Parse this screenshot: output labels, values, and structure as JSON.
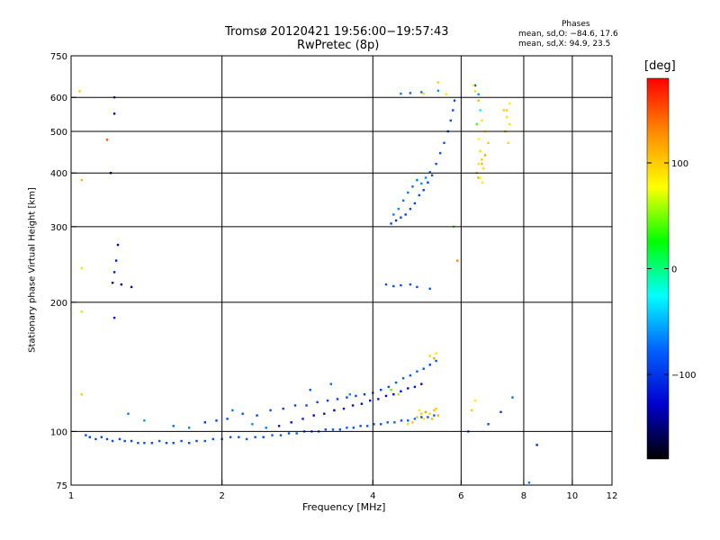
{
  "chart_data": {
    "type": "scatter",
    "title": "Tromsø 20120421 19:56:00−19:57:43",
    "subtitle": "RwPretec (8p)",
    "xlabel": "Frequency [MHz]",
    "ylabel": "Stationary phase Virtual Height [km]",
    "x_scale": "log",
    "y_scale": "log",
    "xlim": [
      1,
      12
    ],
    "ylim": [
      75,
      750
    ],
    "xticks": [
      1,
      2,
      4,
      6,
      8,
      10,
      12
    ],
    "xtick_labels": [
      "1",
      "2",
      "4",
      "6",
      "8",
      "10",
      "12"
    ],
    "yticks": [
      75,
      100,
      200,
      300,
      400,
      500,
      600,
      750
    ],
    "ytick_labels": [
      "75",
      "100",
      "200",
      "300",
      "400",
      "500",
      "600",
      "750"
    ],
    "grid_x": [
      2,
      4,
      6,
      8,
      10
    ],
    "grid_y": [
      100,
      200,
      300,
      400,
      500,
      600
    ],
    "grid": true,
    "colorbar": {
      "label": "[deg]",
      "ticks": [
        100,
        0,
        -100
      ],
      "tick_labels": [
        "100",
        "0",
        "−100"
      ],
      "range": [
        -180,
        180
      ],
      "colors_top_to_bottom": [
        "#ff0000",
        "#ff8c00",
        "#ffff00",
        "#00ff00",
        "#00ffff",
        "#0060ff",
        "#0000cc",
        "#000000"
      ]
    },
    "stats": {
      "heading": "Phases",
      "line1": "mean, sd,O: −84.6, 17.6",
      "line2": "mean, sd,X:  94.9, 23.5"
    },
    "series": [
      {
        "points": [
          [
            1.07,
            98
          ],
          [
            1.09,
            97
          ],
          [
            1.12,
            96
          ],
          [
            1.15,
            97
          ],
          [
            1.18,
            96
          ],
          [
            1.21,
            95
          ],
          [
            1.25,
            96
          ],
          [
            1.28,
            95
          ],
          [
            1.32,
            95
          ],
          [
            1.36,
            94
          ],
          [
            1.4,
            94
          ],
          [
            1.45,
            94
          ],
          [
            1.5,
            95
          ],
          [
            1.55,
            94
          ],
          [
            1.6,
            94
          ],
          [
            1.66,
            95
          ],
          [
            1.72,
            94
          ],
          [
            1.78,
            95
          ],
          [
            1.85,
            95
          ],
          [
            1.92,
            96
          ],
          [
            2.0,
            96
          ],
          [
            2.08,
            97
          ],
          [
            2.16,
            97
          ],
          [
            2.24,
            96
          ],
          [
            2.33,
            97
          ],
          [
            2.42,
            97
          ],
          [
            2.52,
            98
          ],
          [
            2.62,
            98
          ],
          [
            2.72,
            99
          ],
          [
            2.82,
            99
          ],
          [
            2.92,
            100
          ],
          [
            3.02,
            100
          ],
          [
            3.12,
            100
          ],
          [
            3.22,
            101
          ],
          [
            3.33,
            101
          ],
          [
            3.44,
            101
          ],
          [
            3.55,
            102
          ],
          [
            3.66,
            102
          ],
          [
            3.78,
            103
          ],
          [
            3.9,
            103
          ],
          [
            4.02,
            104
          ],
          [
            4.15,
            104
          ],
          [
            4.28,
            105
          ],
          [
            4.42,
            105
          ],
          [
            4.56,
            106
          ],
          [
            4.7,
            106
          ],
          [
            4.85,
            107
          ],
          [
            5.0,
            108
          ],
          [
            5.15,
            108
          ],
          [
            5.3,
            109
          ],
          [
            1.85,
            105
          ],
          [
            1.95,
            106
          ],
          [
            2.05,
            107
          ],
          [
            2.2,
            110
          ],
          [
            2.35,
            109
          ],
          [
            2.5,
            112
          ],
          [
            2.65,
            113
          ],
          [
            2.8,
            115
          ],
          [
            2.95,
            115
          ],
          [
            3.1,
            117
          ],
          [
            3.25,
            118
          ],
          [
            3.4,
            119
          ],
          [
            3.55,
            120
          ],
          [
            3.7,
            121
          ],
          [
            3.85,
            122
          ],
          [
            4.0,
            123
          ],
          [
            4.15,
            125
          ],
          [
            4.3,
            127
          ],
          [
            4.45,
            130
          ],
          [
            4.6,
            133
          ],
          [
            4.75,
            135
          ],
          [
            4.9,
            138
          ],
          [
            5.05,
            140
          ],
          [
            5.2,
            143
          ],
          [
            5.35,
            146
          ],
          [
            2.6,
            103
          ],
          [
            2.75,
            105
          ],
          [
            2.9,
            107
          ],
          [
            3.05,
            109
          ],
          [
            3.2,
            110
          ],
          [
            3.35,
            112
          ],
          [
            3.5,
            113
          ],
          [
            3.65,
            115
          ],
          [
            3.8,
            116
          ],
          [
            3.95,
            118
          ],
          [
            4.1,
            119
          ],
          [
            4.25,
            121
          ],
          [
            4.4,
            122
          ],
          [
            4.55,
            124
          ],
          [
            4.7,
            126
          ],
          [
            4.85,
            127
          ],
          [
            5.0,
            129
          ],
          [
            1.3,
            110
          ],
          [
            1.4,
            106
          ],
          [
            1.6,
            103
          ],
          [
            1.72,
            102
          ],
          [
            2.1,
            112
          ],
          [
            2.3,
            104
          ],
          [
            2.45,
            102
          ],
          [
            3.0,
            125
          ],
          [
            3.3,
            129
          ],
          [
            3.6,
            122
          ],
          [
            4.25,
            220
          ],
          [
            4.4,
            218
          ],
          [
            4.55,
            219
          ],
          [
            4.75,
            220
          ],
          [
            4.9,
            217
          ],
          [
            5.2,
            215
          ],
          [
            1.22,
            600
          ],
          [
            1.22,
            550
          ],
          [
            1.2,
            400
          ],
          [
            1.18,
            478
          ],
          [
            1.24,
            272
          ],
          [
            1.23,
            250
          ],
          [
            1.22,
            235
          ],
          [
            1.21,
            222
          ],
          [
            1.26,
            220
          ],
          [
            1.32,
            217
          ],
          [
            1.22,
            184
          ],
          [
            4.35,
            305
          ],
          [
            4.45,
            310
          ],
          [
            4.55,
            315
          ],
          [
            4.65,
            320
          ],
          [
            4.75,
            330
          ],
          [
            4.85,
            340
          ],
          [
            4.95,
            355
          ],
          [
            5.05,
            365
          ],
          [
            5.15,
            380
          ],
          [
            5.25,
            395
          ],
          [
            5.35,
            420
          ],
          [
            5.45,
            445
          ],
          [
            5.55,
            470
          ],
          [
            5.65,
            500
          ],
          [
            5.72,
            530
          ],
          [
            5.78,
            560
          ],
          [
            5.82,
            590
          ],
          [
            4.4,
            320
          ],
          [
            4.5,
            330
          ],
          [
            4.6,
            345
          ],
          [
            4.7,
            360
          ],
          [
            4.8,
            372
          ],
          [
            4.9,
            385
          ],
          [
            5.0,
            378
          ],
          [
            5.1,
            390
          ],
          [
            5.2,
            402
          ],
          [
            4.55,
            612
          ],
          [
            4.75,
            614
          ],
          [
            5.0,
            617
          ],
          [
            5.4,
            622
          ],
          [
            6.4,
            640
          ],
          [
            6.5,
            610
          ],
          [
            6.55,
            560
          ],
          [
            6.45,
            520
          ],
          [
            6.5,
            480
          ],
          [
            6.55,
            450
          ],
          [
            6.6,
            420
          ],
          [
            6.5,
            390
          ],
          [
            7.4,
            560
          ],
          [
            7.5,
            520
          ],
          [
            8.2,
            76
          ],
          [
            8.5,
            93
          ],
          [
            6.2,
            100
          ],
          [
            6.8,
            104
          ],
          [
            7.2,
            111
          ],
          [
            7.6,
            120
          ]
        ],
        "phase": [
          -90,
          -95,
          -88,
          -92,
          -90,
          -85,
          -93,
          -88,
          -91,
          -87,
          -84,
          -90,
          -86,
          -92,
          -89,
          -85,
          -88,
          -90,
          -83,
          -87,
          -80,
          -86,
          -88,
          -82,
          -85,
          -90,
          -78,
          -84,
          -86,
          -80,
          -83,
          -88,
          -79,
          -85,
          -82,
          -86,
          -80,
          -84,
          -88,
          -81,
          -78,
          -85,
          -82,
          -80,
          -86,
          -83,
          -75,
          -82,
          -88,
          -80,
          -100,
          -95,
          -90,
          -85,
          -92,
          -88,
          -94,
          -96,
          -90,
          -92,
          -95,
          -98,
          -92,
          -90,
          -96,
          -88,
          -90,
          -85,
          -80,
          -78,
          -82,
          -76,
          -88,
          -90,
          -84,
          -120,
          -125,
          -118,
          -130,
          -122,
          -128,
          -120,
          -124,
          -126,
          -121,
          -118,
          -123,
          -127,
          -120,
          -125,
          -119,
          -124,
          -70,
          -60,
          -75,
          -68,
          -72,
          -65,
          -70,
          -80,
          -75,
          -62,
          -85,
          -90,
          -88,
          -82,
          -86,
          -84,
          -110,
          -130,
          -140,
          150,
          -125,
          -120,
          -115,
          -150,
          -135,
          -130,
          -120,
          -95,
          -100,
          -92,
          -98,
          -90,
          -94,
          -88,
          -92,
          -96,
          -85,
          -90,
          -88,
          -84,
          -92,
          -86,
          -90,
          -94,
          -70,
          -65,
          -72,
          -68,
          -75,
          -70,
          -62,
          -66,
          -74,
          -70,
          -78,
          -72,
          -60,
          -90,
          -60,
          -30,
          40,
          80,
          95,
          110,
          120,
          100,
          90,
          -70,
          -110,
          -80,
          -90,
          -100,
          -75
        ]
      },
      {
        "points": [
          [
            4.9,
            108
          ],
          [
            5.0,
            110
          ],
          [
            5.1,
            111
          ],
          [
            5.2,
            110
          ],
          [
            5.3,
            112
          ],
          [
            5.4,
            109
          ],
          [
            5.05,
            107
          ],
          [
            5.25,
            107
          ],
          [
            4.95,
            112
          ],
          [
            5.35,
            113
          ],
          [
            5.2,
            150
          ],
          [
            5.3,
            148
          ],
          [
            5.35,
            152
          ],
          [
            4.8,
            105
          ],
          [
            4.7,
            104
          ],
          [
            6.45,
            400
          ],
          [
            6.5,
            420
          ],
          [
            6.6,
            430
          ],
          [
            6.55,
            390
          ],
          [
            6.65,
            410
          ],
          [
            6.7,
            440
          ],
          [
            6.62,
            380
          ],
          [
            7.3,
            560
          ],
          [
            7.4,
            540
          ],
          [
            7.5,
            580
          ],
          [
            6.4,
            620
          ],
          [
            6.5,
            590
          ],
          [
            6.35,
            640
          ],
          [
            5.4,
            650
          ],
          [
            5.6,
            610
          ],
          [
            5.05,
            612
          ],
          [
            4.35,
            125
          ],
          [
            4.5,
            122
          ],
          [
            6.7,
            500
          ],
          [
            6.8,
            470
          ],
          [
            6.6,
            530
          ],
          [
            7.35,
            500
          ],
          [
            7.45,
            470
          ],
          [
            6.3,
            112
          ],
          [
            6.4,
            118
          ],
          [
            1.04,
            620
          ],
          [
            1.05,
            385
          ],
          [
            1.05,
            240
          ],
          [
            1.05,
            190
          ],
          [
            1.05,
            122
          ],
          [
            5.8,
            300
          ],
          [
            5.9,
            250
          ]
        ],
        "phase": [
          110,
          100,
          120,
          95,
          105,
          115,
          90,
          110,
          85,
          100,
          100,
          120,
          90,
          105,
          95,
          110,
          90,
          100,
          80,
          95,
          120,
          85,
          100,
          90,
          80,
          95,
          110,
          85,
          100,
          90,
          95,
          45,
          55,
          80,
          100,
          90,
          110,
          95,
          100,
          85,
          100,
          110,
          90,
          95,
          100,
          40,
          130
        ]
      }
    ]
  }
}
